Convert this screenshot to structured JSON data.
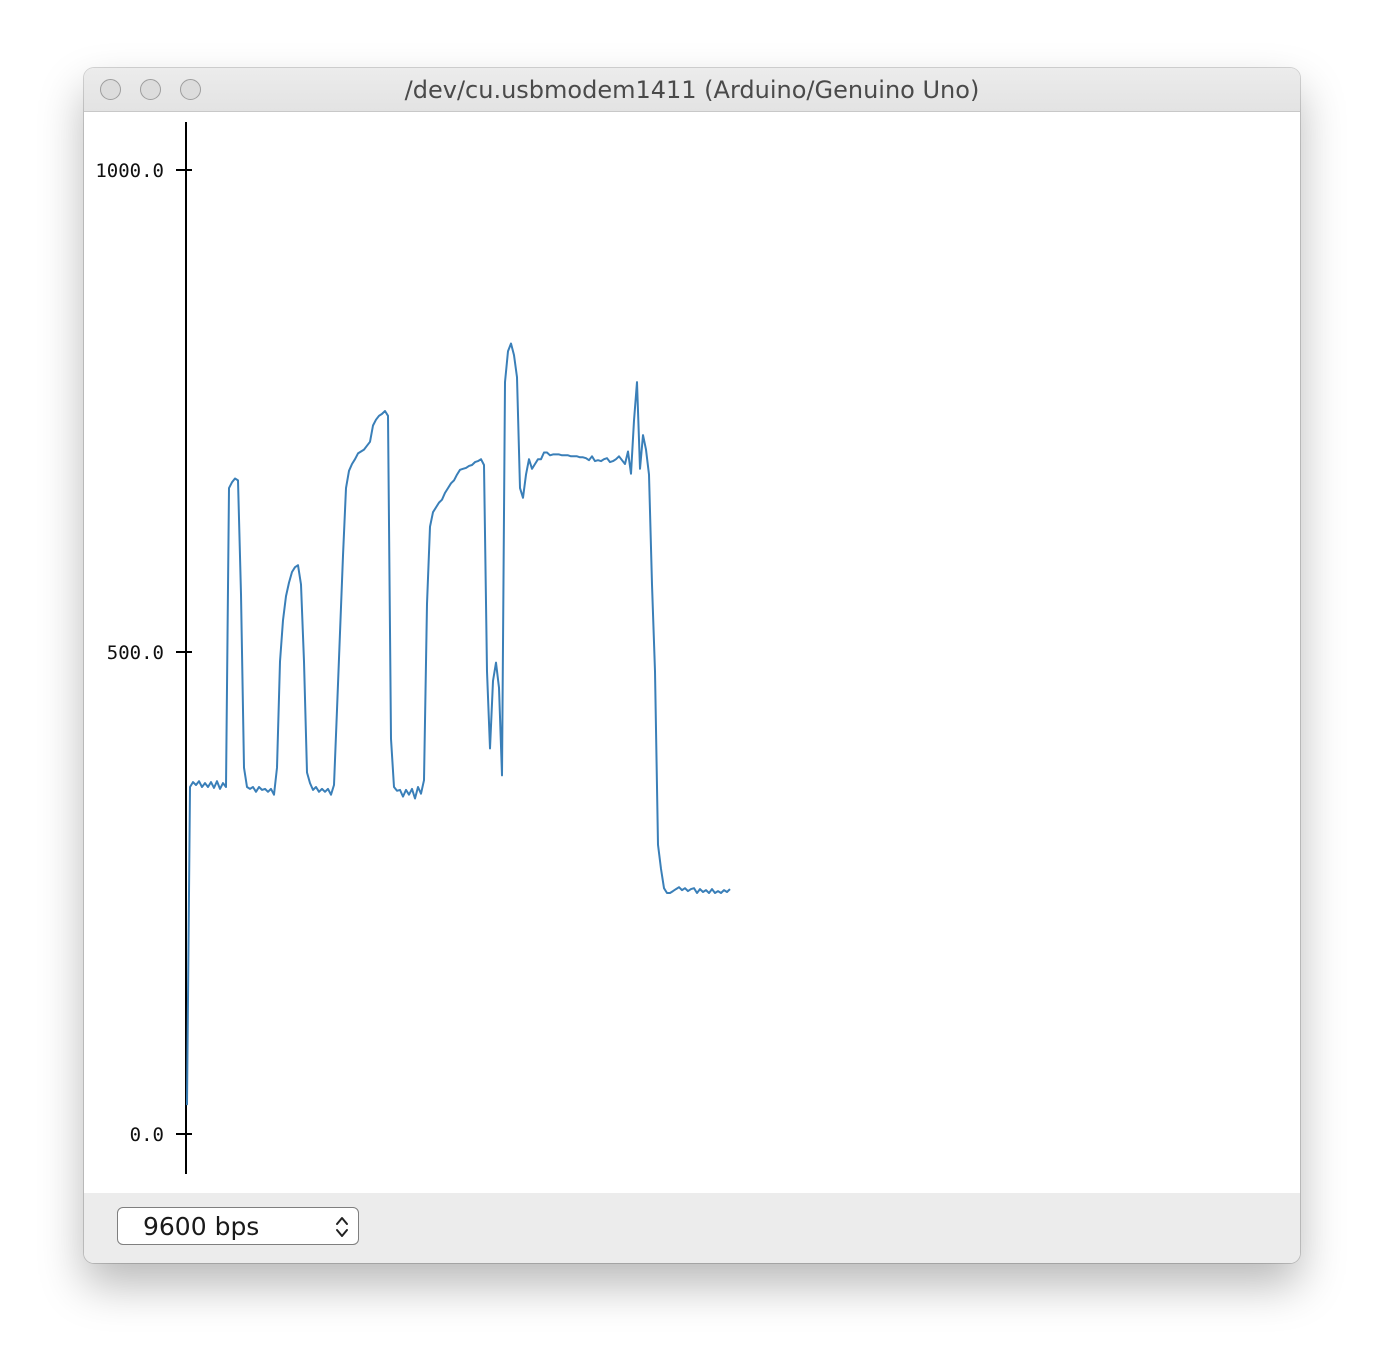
{
  "window": {
    "title": "/dev/cu.usbmodem1411 (Arduino/Genuino Uno)"
  },
  "footer": {
    "baud_rate": "9600 bps"
  },
  "colors": {
    "series": "#3a7fb8",
    "axis": "#000000"
  },
  "chart_data": {
    "type": "line",
    "title": "",
    "xlabel": "",
    "ylabel": "",
    "ylim": [
      -42,
      1050
    ],
    "y_ticks": [
      {
        "value": 0,
        "label": "0.0"
      },
      {
        "value": 500,
        "label": "500.0"
      },
      {
        "value": 1000,
        "label": "1000.0"
      }
    ],
    "grid": false,
    "series": [
      {
        "name": "serial",
        "values": [
          30,
          360,
          365,
          362,
          366,
          360,
          364,
          360,
          365,
          359,
          366,
          358,
          364,
          360,
          670,
          676,
          680,
          678,
          560,
          380,
          360,
          358,
          360,
          355,
          360,
          357,
          358,
          355,
          358,
          352,
          380,
          490,
          533,
          558,
          572,
          583,
          588,
          590,
          570,
          490,
          375,
          364,
          357,
          360,
          355,
          358,
          355,
          358,
          352,
          362,
          440,
          520,
          600,
          670,
          688,
          695,
          700,
          706,
          708,
          710,
          714,
          718,
          735,
          741,
          745,
          747,
          750,
          745,
          410,
          360,
          356,
          357,
          350,
          357,
          352,
          358,
          348,
          360,
          353,
          367,
          550,
          630,
          645,
          650,
          655,
          658,
          665,
          670,
          675,
          678,
          684,
          689,
          690,
          691,
          693,
          694,
          697,
          698,
          700,
          694,
          480,
          400,
          470,
          489,
          463,
          372,
          780,
          812,
          820,
          808,
          785,
          670,
          660,
          684,
          700,
          690,
          695,
          700,
          700,
          707,
          707,
          704,
          705,
          705,
          705,
          704,
          704,
          704,
          703,
          703,
          703,
          702,
          702,
          701,
          699,
          703,
          698,
          699,
          698,
          700,
          701,
          697,
          698,
          700,
          703,
          699,
          695,
          708,
          685,
          740,
          780,
          690,
          725,
          710,
          684,
          570,
          480,
          300,
          275,
          255,
          250,
          250,
          252,
          254,
          256,
          253,
          255,
          252,
          254,
          255,
          250,
          254,
          251,
          253,
          250,
          254,
          250,
          252,
          250,
          253,
          251,
          254
        ]
      }
    ]
  }
}
